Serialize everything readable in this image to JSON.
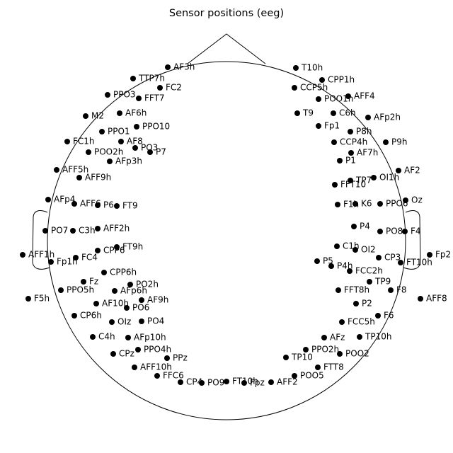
{
  "chart_data": {
    "type": "scatter",
    "title": "Sensor positions (eeg)",
    "color": "#000000",
    "labels": [
      "AF3h",
      "T10h",
      "TTP7h",
      "CPP1h",
      "FC2",
      "CCP5h",
      "AFF4",
      "PPO3",
      "FFT7",
      "POO1h",
      "C6h",
      "AF6h",
      "M2",
      "T9",
      "AFp2h",
      "PPO10",
      "Fp1",
      "P8h",
      "PPO1",
      "FC1h",
      "AF8",
      "CCP4h",
      "P9h",
      "PO3",
      "AF7h",
      "POO2h",
      "P7",
      "AFp3h",
      "P1",
      "AFF5h",
      "AF2",
      "OI1h",
      "AFF9h",
      "TP7",
      "FFT10",
      "Oz",
      "AFp4",
      "AFF6",
      "P6",
      "K6",
      "PPO6",
      "FT9",
      "F1h",
      "PO7",
      "C3h",
      "AFF2h",
      "P4",
      "PO8",
      "F4",
      "AFF1h",
      "Fp2",
      "Fp1h",
      "FC4",
      "CPP6",
      "C1h",
      "OI2",
      "CP3",
      "FT10h",
      "FT9h",
      "P5",
      "P4h",
      "Fz",
      "CPP6h",
      "FCC2h",
      "PPO5h",
      "PO2h",
      "TP9",
      "F8",
      "AFF8",
      "F5h",
      "AFp6h",
      "FFT8h",
      "AF10h",
      "AF9h",
      "P2",
      "F6",
      "CP6h",
      "PO6",
      "OIz",
      "PO4",
      "FCC5h",
      "C4h",
      "AFp10h",
      "AFz",
      "TP10h",
      "CPz",
      "PPO4h",
      "PPO2h",
      "POO2",
      "PPz",
      "AFF10h",
      "TP10",
      "FTT8",
      "FFC6",
      "POO5",
      "CP4",
      "PO9",
      "Fpz",
      "AFF2",
      "FT10h"
    ],
    "x": [
      -83,
      98,
      -132,
      135,
      -94,
      96,
      172,
      -168,
      -124,
      130,
      151,
      -151,
      -199,
      100,
      200,
      -127,
      130,
      175,
      -176,
      -225,
      -149,
      152,
      225,
      -129,
      176,
      -195,
      -108,
      -165,
      160,
      -240,
      243,
      208,
      -208,
      175,
      153,
      253,
      -252,
      -215,
      -182,
      182,
      217,
      -155,
      157,
      -256,
      -217,
      -182,
      180,
      217,
      252,
      -288,
      287,
      -248,
      -213,
      -182,
      156,
      182,
      215,
      246,
      -155,
      128,
      148,
      -202,
      -173,
      174,
      -234,
      -136,
      202,
      232,
      274,
      -280,
      -158,
      158,
      -184,
      -120,
      183,
      214,
      -215,
      -141,
      -162,
      -120,
      163,
      -189,
      -139,
      138,
      188,
      -160,
      -125,
      112,
      160,
      -84,
      -130,
      84,
      129,
      -98,
      96,
      -65,
      -35,
      25,
      63,
      0
    ],
    "y": [
      245,
      244,
      229,
      227,
      216,
      216,
      204,
      206,
      201,
      200,
      180,
      180,
      176,
      180,
      174,
      161,
      162,
      154,
      154,
      140,
      140,
      139,
      139,
      131,
      124,
      125,
      125,
      112,
      113,
      100,
      99,
      89,
      89,
      85,
      79,
      57,
      58,
      52,
      50,
      52,
      52,
      49,
      51,
      14,
      14,
      17,
      20,
      13,
      13,
      -20,
      -20,
      -30,
      -24,
      -14,
      -8,
      -13,
      -24,
      -31,
      -9,
      -29,
      -36,
      -58,
      -45,
      -43,
      -70,
      -62,
      -58,
      -70,
      -82,
      -82,
      -71,
      -70,
      -89,
      -84,
      -89,
      -106,
      -106,
      -95,
      -115,
      -114,
      -115,
      -136,
      -137,
      -137,
      -136,
      -160,
      -154,
      -154,
      -160,
      -166,
      -179,
      -165,
      -179,
      -191,
      -191,
      -200,
      -201,
      -201,
      -200,
      -199
    ],
    "xlim": [
      -320,
      320
    ],
    "ylim": [
      -300,
      340
    ]
  }
}
